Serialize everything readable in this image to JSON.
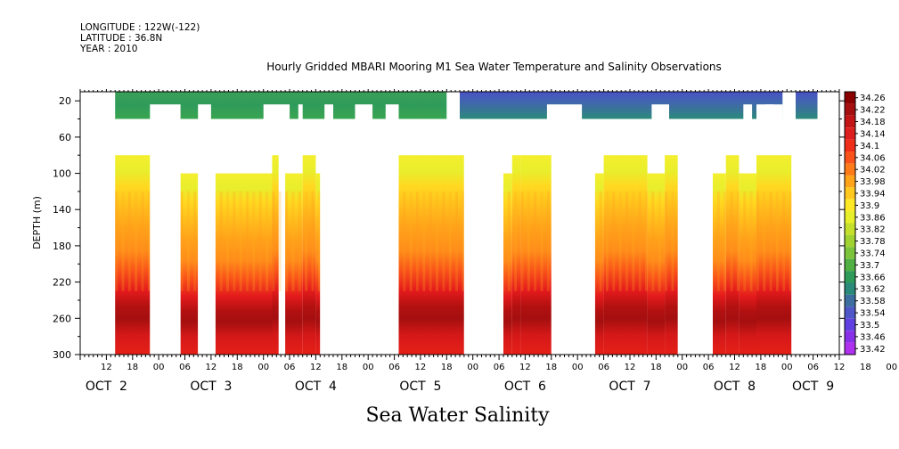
{
  "meta": {
    "longitude": "LONGITUDE : 122W(-122)",
    "latitude": "LATITUDE : 36.8N",
    "year": "YEAR : 2010"
  },
  "chart_data": {
    "type": "heatmap",
    "title": "Hourly Gridded MBARI Mooring M1 Sea Water Temperature and Salinity Observations",
    "xlabel": "Sea Water Salinity",
    "ylabel": "DEPTH (m)",
    "x_range_hours": "Oct 2 06:00 to Oct 9 12:00, 2010",
    "xticks": [
      "12",
      "18",
      "00",
      "06",
      "12",
      "18",
      "00",
      "06",
      "12",
      "18",
      "00",
      "06",
      "12",
      "18",
      "00",
      "06",
      "12",
      "18",
      "00",
      "06",
      "12",
      "18",
      "00",
      "06",
      "12",
      "18",
      "00",
      "06",
      "12",
      "18",
      "00",
      "06"
    ],
    "date_labels": [
      "OCT  2",
      "OCT  3",
      "OCT  4",
      "OCT  5",
      "OCT  6",
      "OCT  7",
      "OCT  8",
      "OCT  9"
    ],
    "yticks": [
      "20",
      "60",
      "100",
      "140",
      "180",
      "220",
      "260",
      "300"
    ],
    "ylim": [
      300,
      0
    ],
    "colorbar": {
      "levels": [
        "34.26",
        "34.22",
        "34.18",
        "34.14",
        "34.1",
        "34.06",
        "34.02",
        "33.98",
        "33.94",
        "33.9",
        "33.86",
        "33.82",
        "33.78",
        "33.74",
        "33.7",
        "33.66",
        "33.62",
        "33.58",
        "33.54",
        "33.5",
        "33.46",
        "33.42"
      ],
      "colors": [
        "#8b0000",
        "#a50f0f",
        "#c31515",
        "#dc1e1e",
        "#ef2e1a",
        "#f9521a",
        "#ff7a18",
        "#ffa31a",
        "#ffc81e",
        "#ffe826",
        "#e6ef2a",
        "#c4e02c",
        "#a0d232",
        "#7cc43c",
        "#50b044",
        "#2f9b5a",
        "#2c8a7a",
        "#3c6fa0",
        "#4f57c8",
        "#6040e0",
        "#8830e8",
        "#b030f0"
      ]
    },
    "depth_bands_m": [
      {
        "from": 10,
        "to": 40,
        "range": "33.52–33.72",
        "note": "near-surface band, blue in Oct 6–9, green earlier"
      },
      {
        "from": 80,
        "to": 120,
        "range": "33.78–33.94"
      },
      {
        "from": 140,
        "to": 200,
        "range": "33.98–34.06"
      },
      {
        "from": 200,
        "to": 240,
        "range": "34.06–34.18"
      },
      {
        "from": 240,
        "to": 270,
        "range": "34.18–34.26"
      },
      {
        "from": 270,
        "to": 300,
        "range": "34.10–34.18"
      }
    ]
  }
}
